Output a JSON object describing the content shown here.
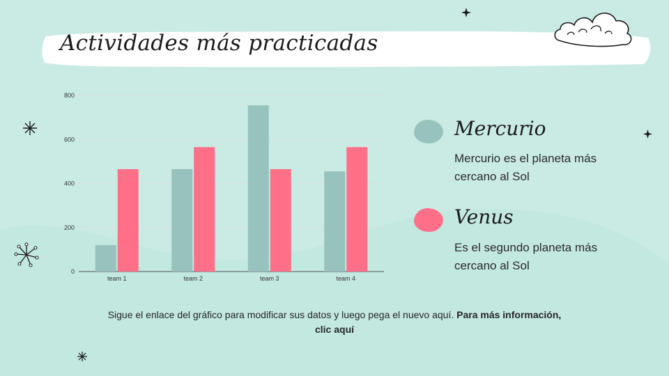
{
  "title": "Actividades más practicadas",
  "colors": {
    "background": "#c9ebe4",
    "wave": "#bfe6de",
    "mercurio": "#97c2bd",
    "venus": "#ff6f88",
    "grid": "#d8dedd",
    "axis": "#555555"
  },
  "legend": {
    "items": [
      {
        "name": "Mercurio",
        "description": "Mercurio es el planeta más cercano al Sol",
        "color": "#97c2bd"
      },
      {
        "name": "Venus",
        "description": "Es el segundo planeta más cercano al Sol",
        "color": "#ff6f88"
      }
    ]
  },
  "footer": {
    "text": "Sigue el enlace del gráfico para modificar sus datos y luego pega el nuevo aquí.",
    "link_text": "Para más información, clic aquí"
  },
  "icons": [
    "cloud-icon",
    "star-icon",
    "sparkle-icon",
    "snowflake-icon"
  ],
  "chart_data": {
    "type": "bar",
    "categories": [
      "team 1",
      "team 2",
      "team 3",
      "team 4"
    ],
    "series": [
      {
        "name": "Mercurio",
        "values": [
          120,
          465,
          755,
          455
        ],
        "color": "#97c2bd"
      },
      {
        "name": "Venus",
        "values": [
          465,
          565,
          465,
          565
        ],
        "color": "#ff6f88"
      }
    ],
    "ylim": [
      0,
      800
    ],
    "yticks": [
      0,
      200,
      400,
      600,
      800
    ],
    "grid": true,
    "title": "",
    "xlabel": "",
    "ylabel": ""
  }
}
